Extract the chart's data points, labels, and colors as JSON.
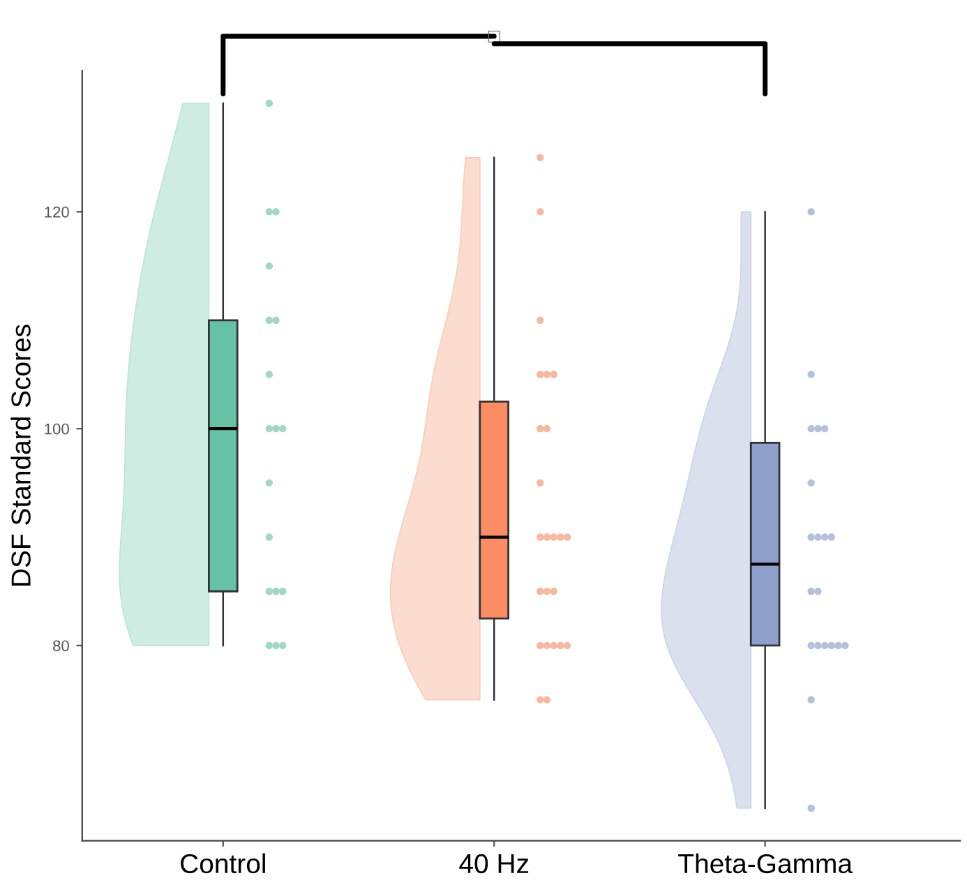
{
  "chart_data": {
    "type": "box",
    "ylabel": "DSF Standard Scores",
    "categories": [
      "Control",
      "40 Hz",
      "Theta-Gamma"
    ],
    "annotations": [
      "□"
    ],
    "ylim": [
      62,
      133
    ],
    "yticks": [
      80,
      100,
      120
    ],
    "grid": false,
    "colors": [
      "#66c2a5",
      "#fc8d62",
      "#8da0cb"
    ],
    "boxes": [
      {
        "low": 80,
        "q1": 85,
        "median": 100,
        "q3": 110,
        "high": 130
      },
      {
        "low": 75,
        "q1": 82.5,
        "median": 90,
        "q3": 102.5,
        "high": 125
      },
      {
        "low": 65,
        "q1": 80,
        "median": 87.5,
        "q3": 98.7,
        "high": 120
      }
    ],
    "series": [
      {
        "type": "scatter",
        "color": "#9fd8c6",
        "x": [
          "Control",
          "Control",
          "Control",
          "Control",
          "Control",
          "Control",
          "Control",
          "Control",
          "Control",
          "Control",
          "Control",
          "Control",
          "Control",
          "Control",
          "Control",
          "Control",
          "Control",
          "Control"
        ],
        "values": [
          130,
          120,
          120,
          115,
          110,
          110,
          105,
          100,
          100,
          100,
          95,
          90,
          85,
          85,
          85,
          80,
          80,
          80
        ]
      },
      {
        "type": "scatter",
        "color": "#f7b89e",
        "x": [
          "40 Hz",
          "40 Hz",
          "40 Hz",
          "40 Hz",
          "40 Hz",
          "40 Hz",
          "40 Hz",
          "40 Hz",
          "40 Hz",
          "40 Hz",
          "40 Hz",
          "40 Hz",
          "40 Hz",
          "40 Hz",
          "40 Hz",
          "40 Hz",
          "40 Hz",
          "40 Hz",
          "40 Hz",
          "40 Hz",
          "40 Hz",
          "40 Hz",
          "40 Hz",
          "40 Hz"
        ],
        "values": [
          125,
          120,
          110,
          105,
          105,
          105,
          100,
          100,
          95,
          90,
          90,
          90,
          90,
          90,
          85,
          85,
          85,
          80,
          80,
          80,
          80,
          80,
          75,
          75
        ]
      },
      {
        "type": "scatter",
        "color": "#b5c1dc",
        "x": [
          "Theta-Gamma",
          "Theta-Gamma",
          "Theta-Gamma",
          "Theta-Gamma",
          "Theta-Gamma",
          "Theta-Gamma",
          "Theta-Gamma",
          "Theta-Gamma",
          "Theta-Gamma",
          "Theta-Gamma",
          "Theta-Gamma",
          "Theta-Gamma",
          "Theta-Gamma",
          "Theta-Gamma",
          "Theta-Gamma",
          "Theta-Gamma",
          "Theta-Gamma",
          "Theta-Gamma",
          "Theta-Gamma",
          "Theta-Gamma"
        ],
        "values": [
          120,
          105,
          100,
          100,
          100,
          95,
          90,
          90,
          90,
          90,
          85,
          85,
          80,
          80,
          80,
          80,
          80,
          80,
          75,
          65
        ]
      }
    ]
  }
}
